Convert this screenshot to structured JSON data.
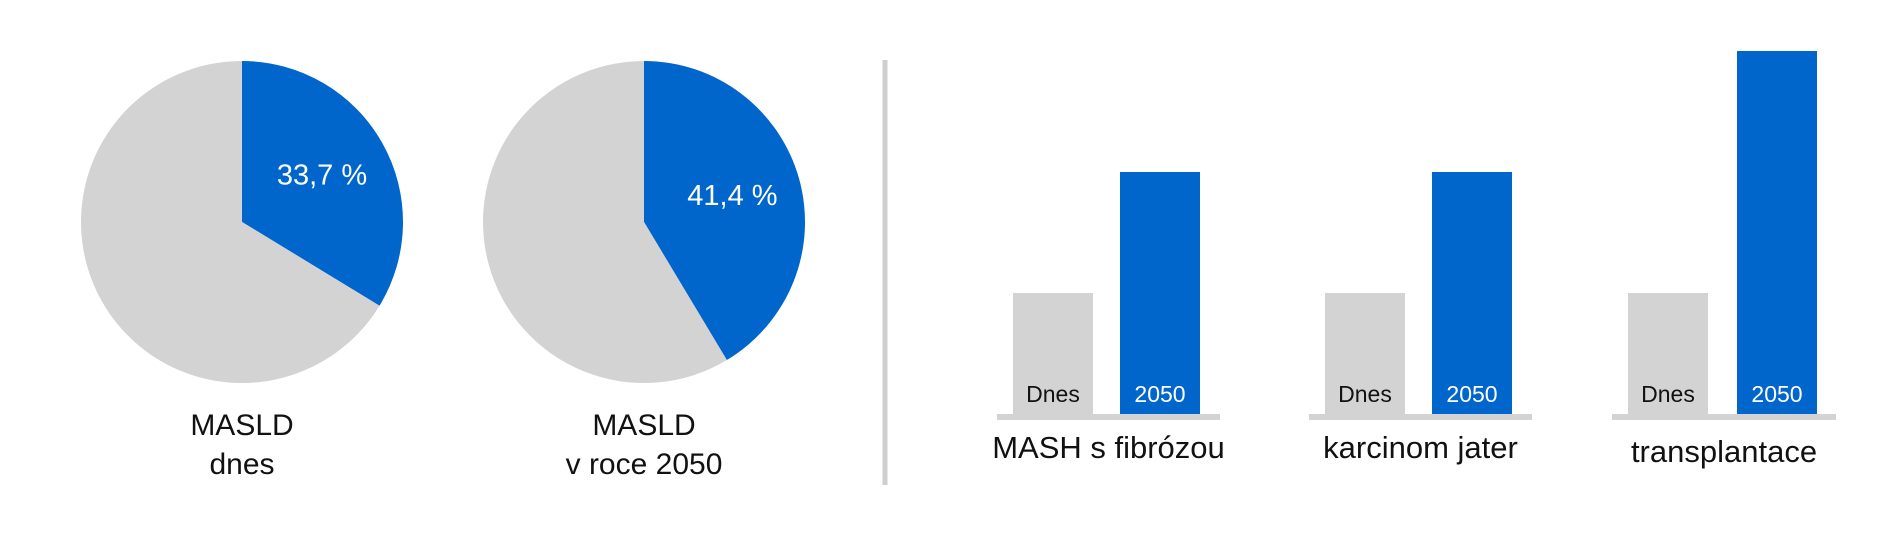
{
  "colors": {
    "accent": "#0066cc",
    "neutral": "#d3d3d3",
    "baseline": "#d3d3d3",
    "divider": "#cfcfcf",
    "text": "#111111"
  },
  "chart_data": [
    {
      "type": "pie",
      "slices": [
        {
          "value": 33.7,
          "color": "#0066cc",
          "label": "33,7 %"
        },
        {
          "value": 66.3,
          "color": "#d3d3d3"
        }
      ],
      "caption_lines": [
        "MASLD",
        "dnes"
      ]
    },
    {
      "type": "pie",
      "slices": [
        {
          "value": 41.4,
          "color": "#0066cc",
          "label": "41,4 %"
        },
        {
          "value": 58.6,
          "color": "#d3d3d3"
        }
      ],
      "caption_lines": [
        "MASLD",
        "v roce 2050"
      ]
    },
    {
      "type": "bar",
      "categories": [
        "MASH s fibrózou",
        "karcinom jater",
        "transplantace"
      ],
      "series": [
        {
          "name": "Dnes",
          "color": "#d3d3d3",
          "label_color": "#111111",
          "values": [
            1,
            1,
            1
          ]
        },
        {
          "name": "2050",
          "color": "#0066cc",
          "label_color": "#ffffff",
          "values": [
            2,
            2,
            3
          ]
        }
      ],
      "ylim": [
        0,
        3
      ],
      "grid": false,
      "note": "relative values, no printed axis"
    }
  ]
}
